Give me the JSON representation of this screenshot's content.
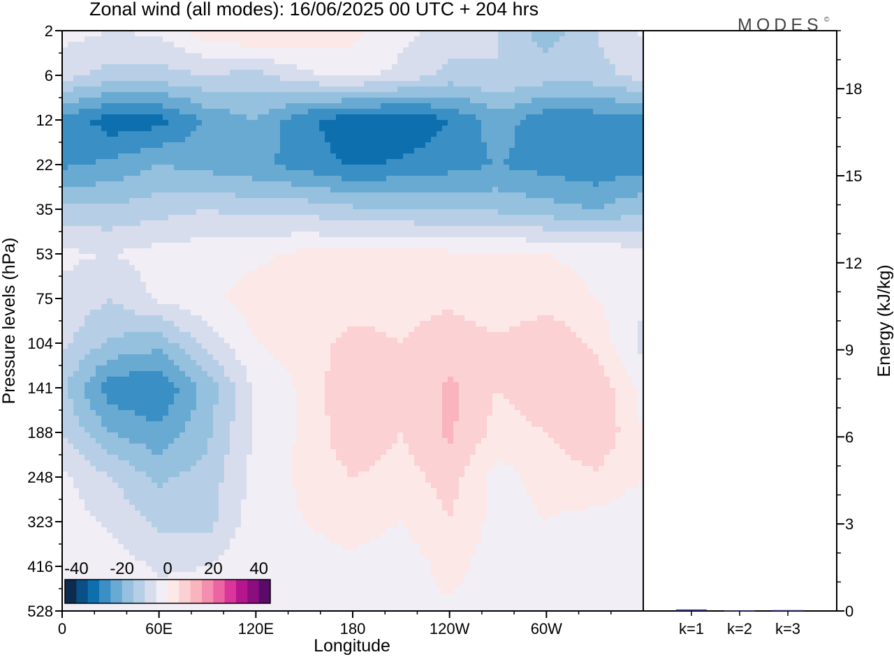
{
  "chart_data": {
    "type": "heatmap",
    "title": "Zonal wind (all modes):  16/06/2025  00 UTC  + 204 hrs",
    "logo_text": "MODES",
    "logo_mark": "©",
    "xlabel": "Longitude",
    "ylabel": "Pressure levels (hPa)",
    "x_ticks": [
      {
        "lon": 0,
        "label": "0"
      },
      {
        "lon": 60,
        "label": "60E"
      },
      {
        "lon": 120,
        "label": "120E"
      },
      {
        "lon": 180,
        "label": "180"
      },
      {
        "lon": 240,
        "label": "120W"
      },
      {
        "lon": 300,
        "label": "60W"
      }
    ],
    "xlim": [
      0,
      360
    ],
    "y_levels": [
      2,
      6,
      12,
      22,
      35,
      53,
      75,
      104,
      141,
      188,
      248,
      323,
      416,
      528
    ],
    "color_scale": {
      "ticks": [
        -40,
        -20,
        0,
        20,
        40
      ],
      "min": -45,
      "step": 5,
      "colors": [
        "#0d2b4e",
        "#0a4f86",
        "#0e6fae",
        "#3a8fc4",
        "#68aad2",
        "#95c1df",
        "#b7cfe6",
        "#d8dded",
        "#f1eef5",
        "#fde8e8",
        "#fbd1d3",
        "#f9b4bd",
        "#f48fb0",
        "#ec64a4",
        "#d9359a",
        "#b5168d",
        "#8a0e7d",
        "#5a0a6b"
      ]
    },
    "field": {
      "levels_hPa": [
        2,
        6,
        12,
        22,
        35,
        53,
        75,
        104,
        141,
        188,
        248,
        323,
        416,
        528
      ],
      "lon": [
        0,
        30,
        60,
        90,
        120,
        150,
        180,
        210,
        240,
        270,
        300,
        330,
        360
      ],
      "u": [
        [
          -3,
          -5,
          -4,
          3,
          6,
          4,
          2,
          -4,
          -6,
          -10,
          -18,
          -10,
          -4
        ],
        [
          -8,
          -12,
          -12,
          -10,
          -12,
          -6,
          -4,
          -6,
          -12,
          -10,
          -12,
          -12,
          -8
        ],
        [
          -26,
          -33,
          -32,
          -24,
          -20,
          -29,
          -33,
          -35,
          -30,
          -22,
          -29,
          -28,
          -27
        ],
        [
          -26,
          -24,
          -20,
          -22,
          -24,
          -27,
          -31,
          -29,
          -27,
          -25,
          -27,
          -29,
          -27
        ],
        [
          -14,
          -14,
          -12,
          -10,
          -12,
          -12,
          -14,
          -15,
          -16,
          -16,
          -18,
          -20,
          -16
        ],
        [
          -4,
          -5,
          -3,
          -2,
          -1,
          1,
          1,
          2,
          1,
          1,
          0,
          -1,
          -3
        ],
        [
          -6,
          -10,
          -4,
          -1,
          2,
          3,
          2,
          3,
          4,
          1,
          2,
          0,
          -4
        ],
        [
          -9,
          -16,
          -18,
          -8,
          0,
          2,
          7,
          5,
          8,
          6,
          10,
          4,
          -7
        ],
        [
          -14,
          -28,
          -30,
          -18,
          -4,
          1,
          10,
          6,
          11,
          5,
          8,
          9,
          -2
        ],
        [
          -10,
          -20,
          -24,
          -16,
          -4,
          1,
          9,
          5,
          11,
          3,
          5,
          10,
          0
        ],
        [
          -4,
          -10,
          -16,
          -13,
          -3,
          1,
          5,
          3,
          7,
          -2,
          2,
          4,
          0
        ],
        [
          -2,
          -6,
          -11,
          -12,
          -2,
          0,
          2,
          0,
          5,
          -2,
          0,
          -2,
          -3
        ],
        [
          0,
          -2,
          -6,
          -5,
          0,
          -2,
          -1,
          -3,
          2,
          -3,
          -1,
          -3,
          -2
        ],
        [
          -1,
          -2,
          -2,
          -1,
          0,
          -2,
          -2,
          -2,
          -1,
          -2,
          -2,
          -3,
          -2
        ]
      ]
    },
    "energy_panel": {
      "ylabel": "Energy (kJ/kg)",
      "ylim": [
        0,
        20
      ],
      "yticks": [
        0,
        3,
        6,
        9,
        12,
        15,
        18
      ],
      "categories": [
        "k=1",
        "k=2",
        "k=3"
      ],
      "values": [
        0.05,
        0.02,
        0.03
      ],
      "bar_color": "#2a2a6e"
    }
  }
}
